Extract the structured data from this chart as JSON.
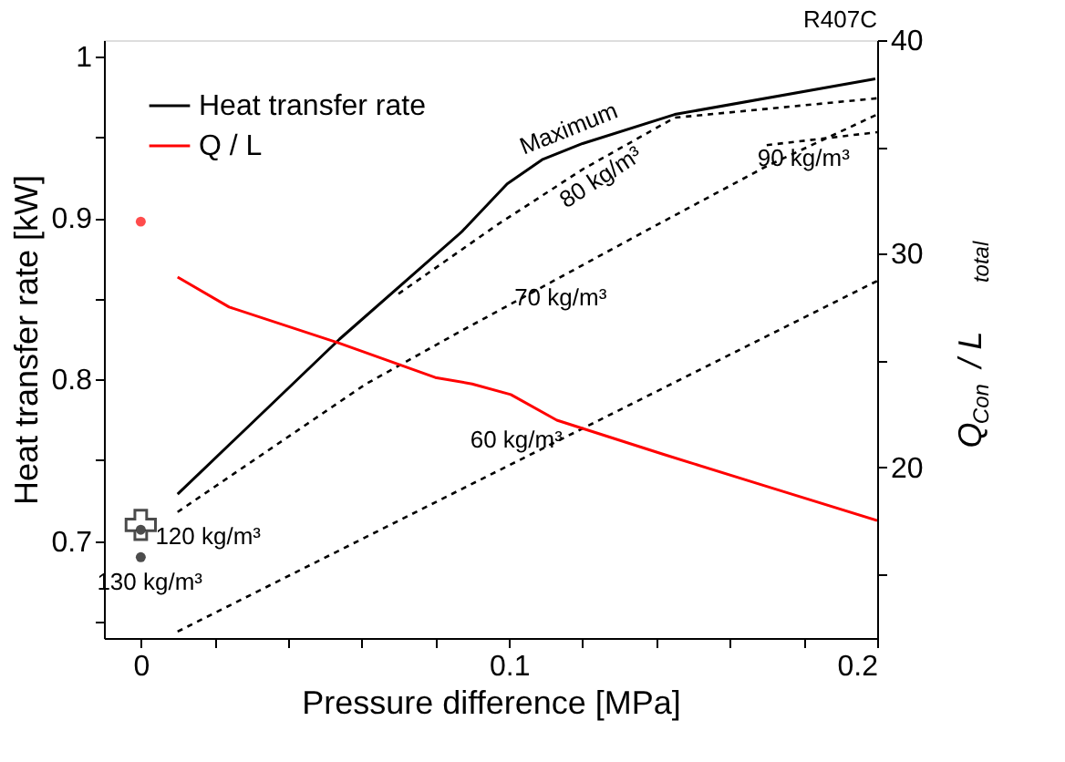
{
  "chart_data": {
    "type": "line",
    "xlabel": "Pressure difference [MPa]",
    "ylabel": "Heat transfer rate [kW]",
    "y2label": "Q$_{Con}$ / L$_{total}$",
    "xlim": [
      -0.01,
      0.2
    ],
    "xticks": [
      0,
      {
        "value": 0.02,
        "label": null
      },
      {
        "value": 0.04,
        "label": null
      },
      {
        "value": 0.06,
        "label": null
      },
      {
        "value": 0.08,
        "label": null
      },
      0.1,
      {
        "value": 0.12,
        "label": null
      },
      {
        "value": 0.14,
        "label": null
      },
      {
        "value": 0.16,
        "label": null
      },
      {
        "value": 0.18,
        "label": null
      },
      0.2
    ],
    "ylim": [
      0.64,
      1.01
    ],
    "yticks": [
      {
        "value": 0.65,
        "label": null
      },
      0.7,
      {
        "value": 0.75,
        "label": null
      },
      0.8,
      {
        "value": 0.85,
        "label": null
      },
      0.9,
      {
        "value": 0.95,
        "label": null
      },
      1
    ],
    "y2lim": [
      12,
      40
    ],
    "y2ticks": [
      {
        "value": 15,
        "label": null
      },
      20,
      {
        "value": 25,
        "label": null
      },
      30,
      {
        "value": 35,
        "label": null
      },
      40
    ],
    "grid": false,
    "legend": "top left",
    "series": [
      {
        "name": "Heat transfer rate",
        "color": "#000000",
        "line_style": "solid",
        "x": [
          0.01,
          0.054,
          0.087,
          0.0995,
          0.109,
          0.12,
          0.145,
          0.1995
        ],
        "values": [
          0.729,
          0.825,
          0.891,
          0.921,
          0.936,
          0.946,
          0.964,
          0.986
        ]
      },
      {
        "name": "Q / L",
        "color": "#ff0000",
        "line_style": "solid",
        "axis": "y2",
        "x": [
          0.01,
          0.024,
          0.054,
          0.08,
          0.09,
          0.1005,
          0.113,
          0.142,
          0.17,
          0.2
        ],
        "values": [
          28.9,
          27.5,
          25.8,
          24.2,
          23.9,
          23.4,
          22.2,
          20.6,
          19.1,
          17.5
        ]
      },
      {
        "color": "#000000",
        "type": "line",
        "line_style": "dashed",
        "x": [
          0.01,
          0.061,
          0.087,
          0.138,
          0.17,
          0.2
        ],
        "values": [
          0.718,
          0.797,
          0.83,
          0.893,
          0.932,
          0.964
        ]
      },
      {
        "color": "#000000",
        "type": "line",
        "line_style": "dashed",
        "x": [
          0.07,
          0.097,
          0.12,
          0.145,
          0.2
        ],
        "values": [
          0.853,
          0.896,
          0.93,
          0.962,
          0.974
        ]
      },
      {
        "color": "#000000",
        "type": "line",
        "line_style": "dashed",
        "x": [
          0.17,
          0.2
        ],
        "values": [
          0.945,
          0.953
        ]
      },
      {
        "color": "#000000",
        "type": "line",
        "line_style": "dashed",
        "x": [
          0.01,
          0.087,
          0.2
        ],
        "values": [
          0.644,
          0.732,
          0.861
        ]
      },
      {
        "color": "#000000",
        "type": "scatter",
        "marker": "cross",
        "x": [
          0
        ],
        "values": [
          0.71
        ]
      },
      {
        "color": "#000000",
        "type": "scatter",
        "marker": "circle",
        "x": [
          0,
          0
        ],
        "values": [
          0.707,
          0.69
        ]
      },
      {
        "color": "#ff0000",
        "type": "scatter",
        "marker": "circle",
        "axis": "y2",
        "x": [
          0
        ],
        "values": [
          31.5
        ]
      }
    ],
    "annotations": [
      "R407C",
      {
        "text": "Maximum",
        "x": 0.12,
        "y": 0.946
      },
      {
        "text": "80 kg/m³",
        "x": 0.12,
        "y": 0.93
      },
      {
        "text": "70 kg/m³",
        "x": 0.114,
        "y": 0.863
      },
      {
        "text": "60 kg/m³",
        "x": 0.102,
        "y": 0.749
      },
      {
        "text": "90 kg/m³",
        "x": 0.18,
        "y": 0.948
      },
      {
        "text": "120 kg/m³",
        "x": 0,
        "y": 0.707
      },
      {
        "text": "130 kg/m³",
        "x": 0,
        "y": 0.69
      }
    ]
  }
}
